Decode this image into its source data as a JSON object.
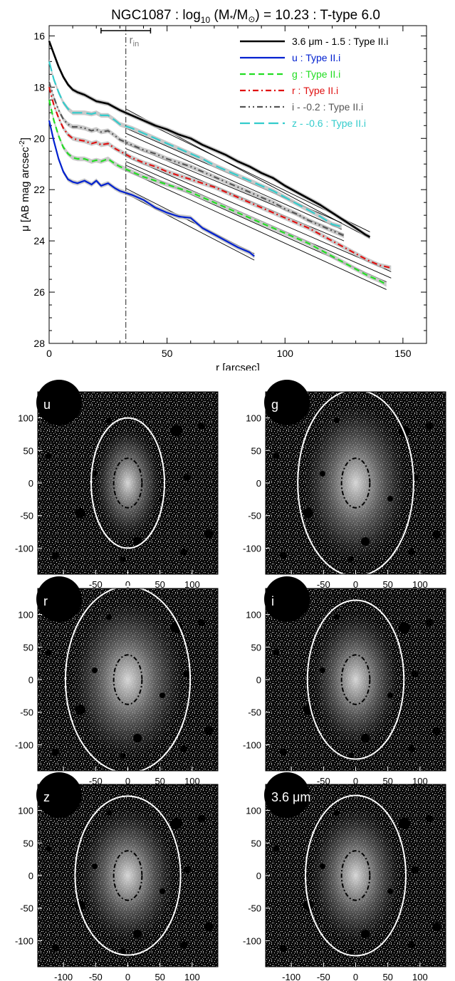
{
  "chart_data": [
    {
      "type": "line",
      "title": "NGC1087 : log",
      "title_sub": "10",
      "title_mid": " (M",
      "title_star": "*",
      "title_slash": "/M",
      "title_sun": "⊙",
      "title_end": ") = 10.23 : T-type 6.0",
      "xlabel": "r [arcsec]",
      "ylabel": "μ [AB mag arcsec",
      "ylabel_sup": "-2",
      "ylabel_end": "]",
      "xlim": [
        0,
        160
      ],
      "ylim": [
        28,
        15.6
      ],
      "y_inverted": true,
      "xticks": [
        "0",
        "50",
        "100",
        "150"
      ],
      "xtick_values": [
        0,
        50,
        100,
        150
      ],
      "yticks": [
        "16",
        "18",
        "20",
        "22",
        "24",
        "26",
        "28"
      ],
      "ytick_values": [
        16,
        18,
        20,
        22,
        24,
        26,
        28
      ],
      "r_in_label": "r",
      "r_in_sub": "in",
      "r_in": 32.5,
      "r_in_err": [
        22,
        43
      ],
      "legend_position": "top-right",
      "series": [
        {
          "name": "3.6 μm - 1.5 : Type II.i",
          "color": "#000000",
          "dash": "",
          "x": [
            0,
            2,
            4,
            6,
            8,
            10,
            12,
            15,
            18,
            20,
            25,
            30,
            35,
            40,
            45,
            50,
            55,
            60,
            65,
            70,
            75,
            80,
            85,
            90,
            95,
            100,
            105,
            110,
            115,
            120,
            125,
            130,
            134,
            136
          ],
          "y": [
            16.2,
            16.7,
            17.2,
            17.6,
            17.9,
            18.1,
            18.2,
            18.3,
            18.45,
            18.55,
            18.65,
            18.9,
            19.1,
            19.3,
            19.5,
            19.65,
            19.85,
            20.0,
            20.25,
            20.45,
            20.65,
            20.9,
            21.1,
            21.35,
            21.55,
            21.85,
            22.1,
            22.35,
            22.6,
            22.9,
            23.2,
            23.5,
            23.75,
            23.85
          ],
          "fit": {
            "x1": 32.5,
            "x2": 136,
            "y_a": [
              19.0,
              23.65
            ],
            "y_b": [
              18.85,
              23.9
            ]
          }
        },
        {
          "name": "u : Type II.i",
          "color": "#0020d0",
          "dash": "",
          "x": [
            0,
            2,
            4,
            6,
            8,
            10,
            12,
            15,
            18,
            20,
            22,
            25,
            28,
            30,
            35,
            40,
            45,
            50,
            55,
            60,
            65,
            70,
            75,
            80,
            85,
            87
          ],
          "y": [
            19.3,
            20.1,
            20.8,
            21.3,
            21.6,
            21.7,
            21.75,
            21.65,
            21.8,
            21.65,
            21.85,
            21.75,
            21.95,
            22.05,
            22.2,
            22.4,
            22.7,
            22.9,
            23.05,
            23.1,
            23.5,
            23.75,
            24.0,
            24.25,
            24.45,
            24.6
          ],
          "fit": {
            "x1": 32.5,
            "x2": 87,
            "y_a": [
              22.15,
              24.75
            ],
            "y_b": [
              21.95,
              24.5
            ]
          }
        },
        {
          "name": "g : Type II.i",
          "color": "#22dd22",
          "dash": "8,5",
          "x": [
            0,
            2,
            4,
            6,
            8,
            10,
            12,
            15,
            18,
            20,
            22,
            25,
            28,
            30,
            35,
            40,
            45,
            50,
            55,
            60,
            65,
            70,
            75,
            80,
            85,
            90,
            95,
            100,
            105,
            110,
            115,
            120,
            125,
            130,
            135,
            140,
            143
          ],
          "y": [
            18.5,
            19.3,
            19.9,
            20.35,
            20.6,
            20.75,
            20.8,
            20.8,
            20.9,
            20.85,
            20.9,
            20.8,
            21.0,
            21.1,
            21.3,
            21.5,
            21.65,
            21.8,
            21.95,
            22.1,
            22.3,
            22.5,
            22.7,
            22.9,
            23.1,
            23.3,
            23.5,
            23.7,
            23.9,
            24.1,
            24.35,
            24.6,
            24.85,
            25.1,
            25.35,
            25.55,
            25.7
          ],
          "fit": {
            "x1": 32.5,
            "x2": 143,
            "y_a": [
              21.25,
              25.9
            ],
            "y_b": [
              21.05,
              25.6
            ]
          }
        },
        {
          "name": "r : Type II.i",
          "color": "#e01010",
          "dash": "8,4,2,4",
          "x": [
            0,
            2,
            4,
            6,
            8,
            10,
            12,
            15,
            18,
            20,
            22,
            25,
            28,
            30,
            35,
            40,
            45,
            50,
            55,
            60,
            65,
            70,
            75,
            80,
            85,
            90,
            95,
            100,
            105,
            110,
            115,
            120,
            125,
            130,
            135,
            140,
            145
          ],
          "y": [
            18.0,
            18.7,
            19.2,
            19.6,
            19.85,
            20.0,
            20.05,
            20.1,
            20.2,
            20.15,
            20.25,
            20.2,
            20.4,
            20.5,
            20.75,
            20.95,
            21.1,
            21.3,
            21.45,
            21.6,
            21.75,
            21.9,
            22.1,
            22.3,
            22.5,
            22.7,
            22.9,
            23.1,
            23.3,
            23.5,
            23.75,
            24.0,
            24.25,
            24.5,
            24.75,
            24.95,
            25.05
          ],
          "fit": {
            "x1": 32.5,
            "x2": 145,
            "y_a": [
              20.9,
              25.45
            ],
            "y_b": [
              20.7,
              25.2
            ]
          }
        },
        {
          "name": "i - -0.2 : Type II.i",
          "color": "#555555",
          "dash": "8,4,2,4,2,4",
          "x": [
            0,
            2,
            4,
            6,
            8,
            10,
            12,
            15,
            18,
            20,
            22,
            25,
            28,
            30,
            35,
            40,
            45,
            50,
            55,
            60,
            65,
            70,
            75,
            80,
            85,
            90,
            95,
            100,
            105,
            110,
            115,
            120,
            125
          ],
          "y": [
            17.8,
            18.4,
            18.9,
            19.25,
            19.45,
            19.55,
            19.55,
            19.6,
            19.7,
            19.65,
            19.75,
            19.7,
            19.9,
            20.05,
            20.25,
            20.45,
            20.6,
            20.8,
            20.95,
            21.1,
            21.3,
            21.5,
            21.7,
            21.9,
            22.1,
            22.3,
            22.5,
            22.75,
            22.95,
            23.2,
            23.4,
            23.6,
            23.8
          ],
          "fit": {
            "x1": 32.5,
            "x2": 125,
            "y_a": [
              20.4,
              24.0
            ],
            "y_b": [
              20.2,
              23.75
            ]
          }
        },
        {
          "name": "z - -0.6 : Type II.i",
          "color": "#33cccc",
          "dash": "14,6",
          "x": [
            0,
            2,
            4,
            6,
            8,
            10,
            12,
            15,
            18,
            20,
            22,
            25,
            28,
            30,
            35,
            40,
            45,
            50,
            55,
            60,
            65,
            70,
            75,
            80,
            85,
            90,
            95,
            100,
            105,
            110,
            115,
            120,
            124
          ],
          "y": [
            17.0,
            17.7,
            18.2,
            18.6,
            18.85,
            19.0,
            19.0,
            19.0,
            19.05,
            19.0,
            19.1,
            19.1,
            19.3,
            19.45,
            19.6,
            19.8,
            20.0,
            20.2,
            20.4,
            20.6,
            20.8,
            21.05,
            21.25,
            21.45,
            21.65,
            21.85,
            22.05,
            22.3,
            22.55,
            22.8,
            23.05,
            23.35,
            23.45
          ],
          "fit": {
            "x1": 32.5,
            "x2": 124,
            "y_a": [
              19.8,
              23.55
            ],
            "y_b": [
              19.6,
              23.3
            ]
          }
        }
      ]
    },
    {
      "type": "image_panels",
      "xticks": [
        "-100",
        "-50",
        "0",
        "50",
        "100"
      ],
      "tick_values": [
        -100,
        -50,
        0,
        50,
        100
      ],
      "yticks": [
        "100",
        "50",
        "0",
        "-50",
        "-100"
      ],
      "range": [
        -140,
        140
      ],
      "panels": [
        {
          "label": "u",
          "outer": [
            57,
            100
          ],
          "inner": [
            22,
            38
          ]
        },
        {
          "label": "g",
          "outer": [
            90,
            143
          ],
          "inner": [
            22,
            38
          ]
        },
        {
          "label": "r",
          "outer": [
            97,
            143
          ],
          "inner": [
            22,
            38
          ]
        },
        {
          "label": "i",
          "outer": [
            75,
            122
          ],
          "inner": [
            22,
            38
          ]
        },
        {
          "label": "z",
          "outer": [
            82,
            122
          ],
          "inner": [
            22,
            38
          ]
        },
        {
          "label": "3.6 μm",
          "outer": [
            78,
            123
          ],
          "inner": [
            22,
            38
          ]
        }
      ]
    }
  ]
}
